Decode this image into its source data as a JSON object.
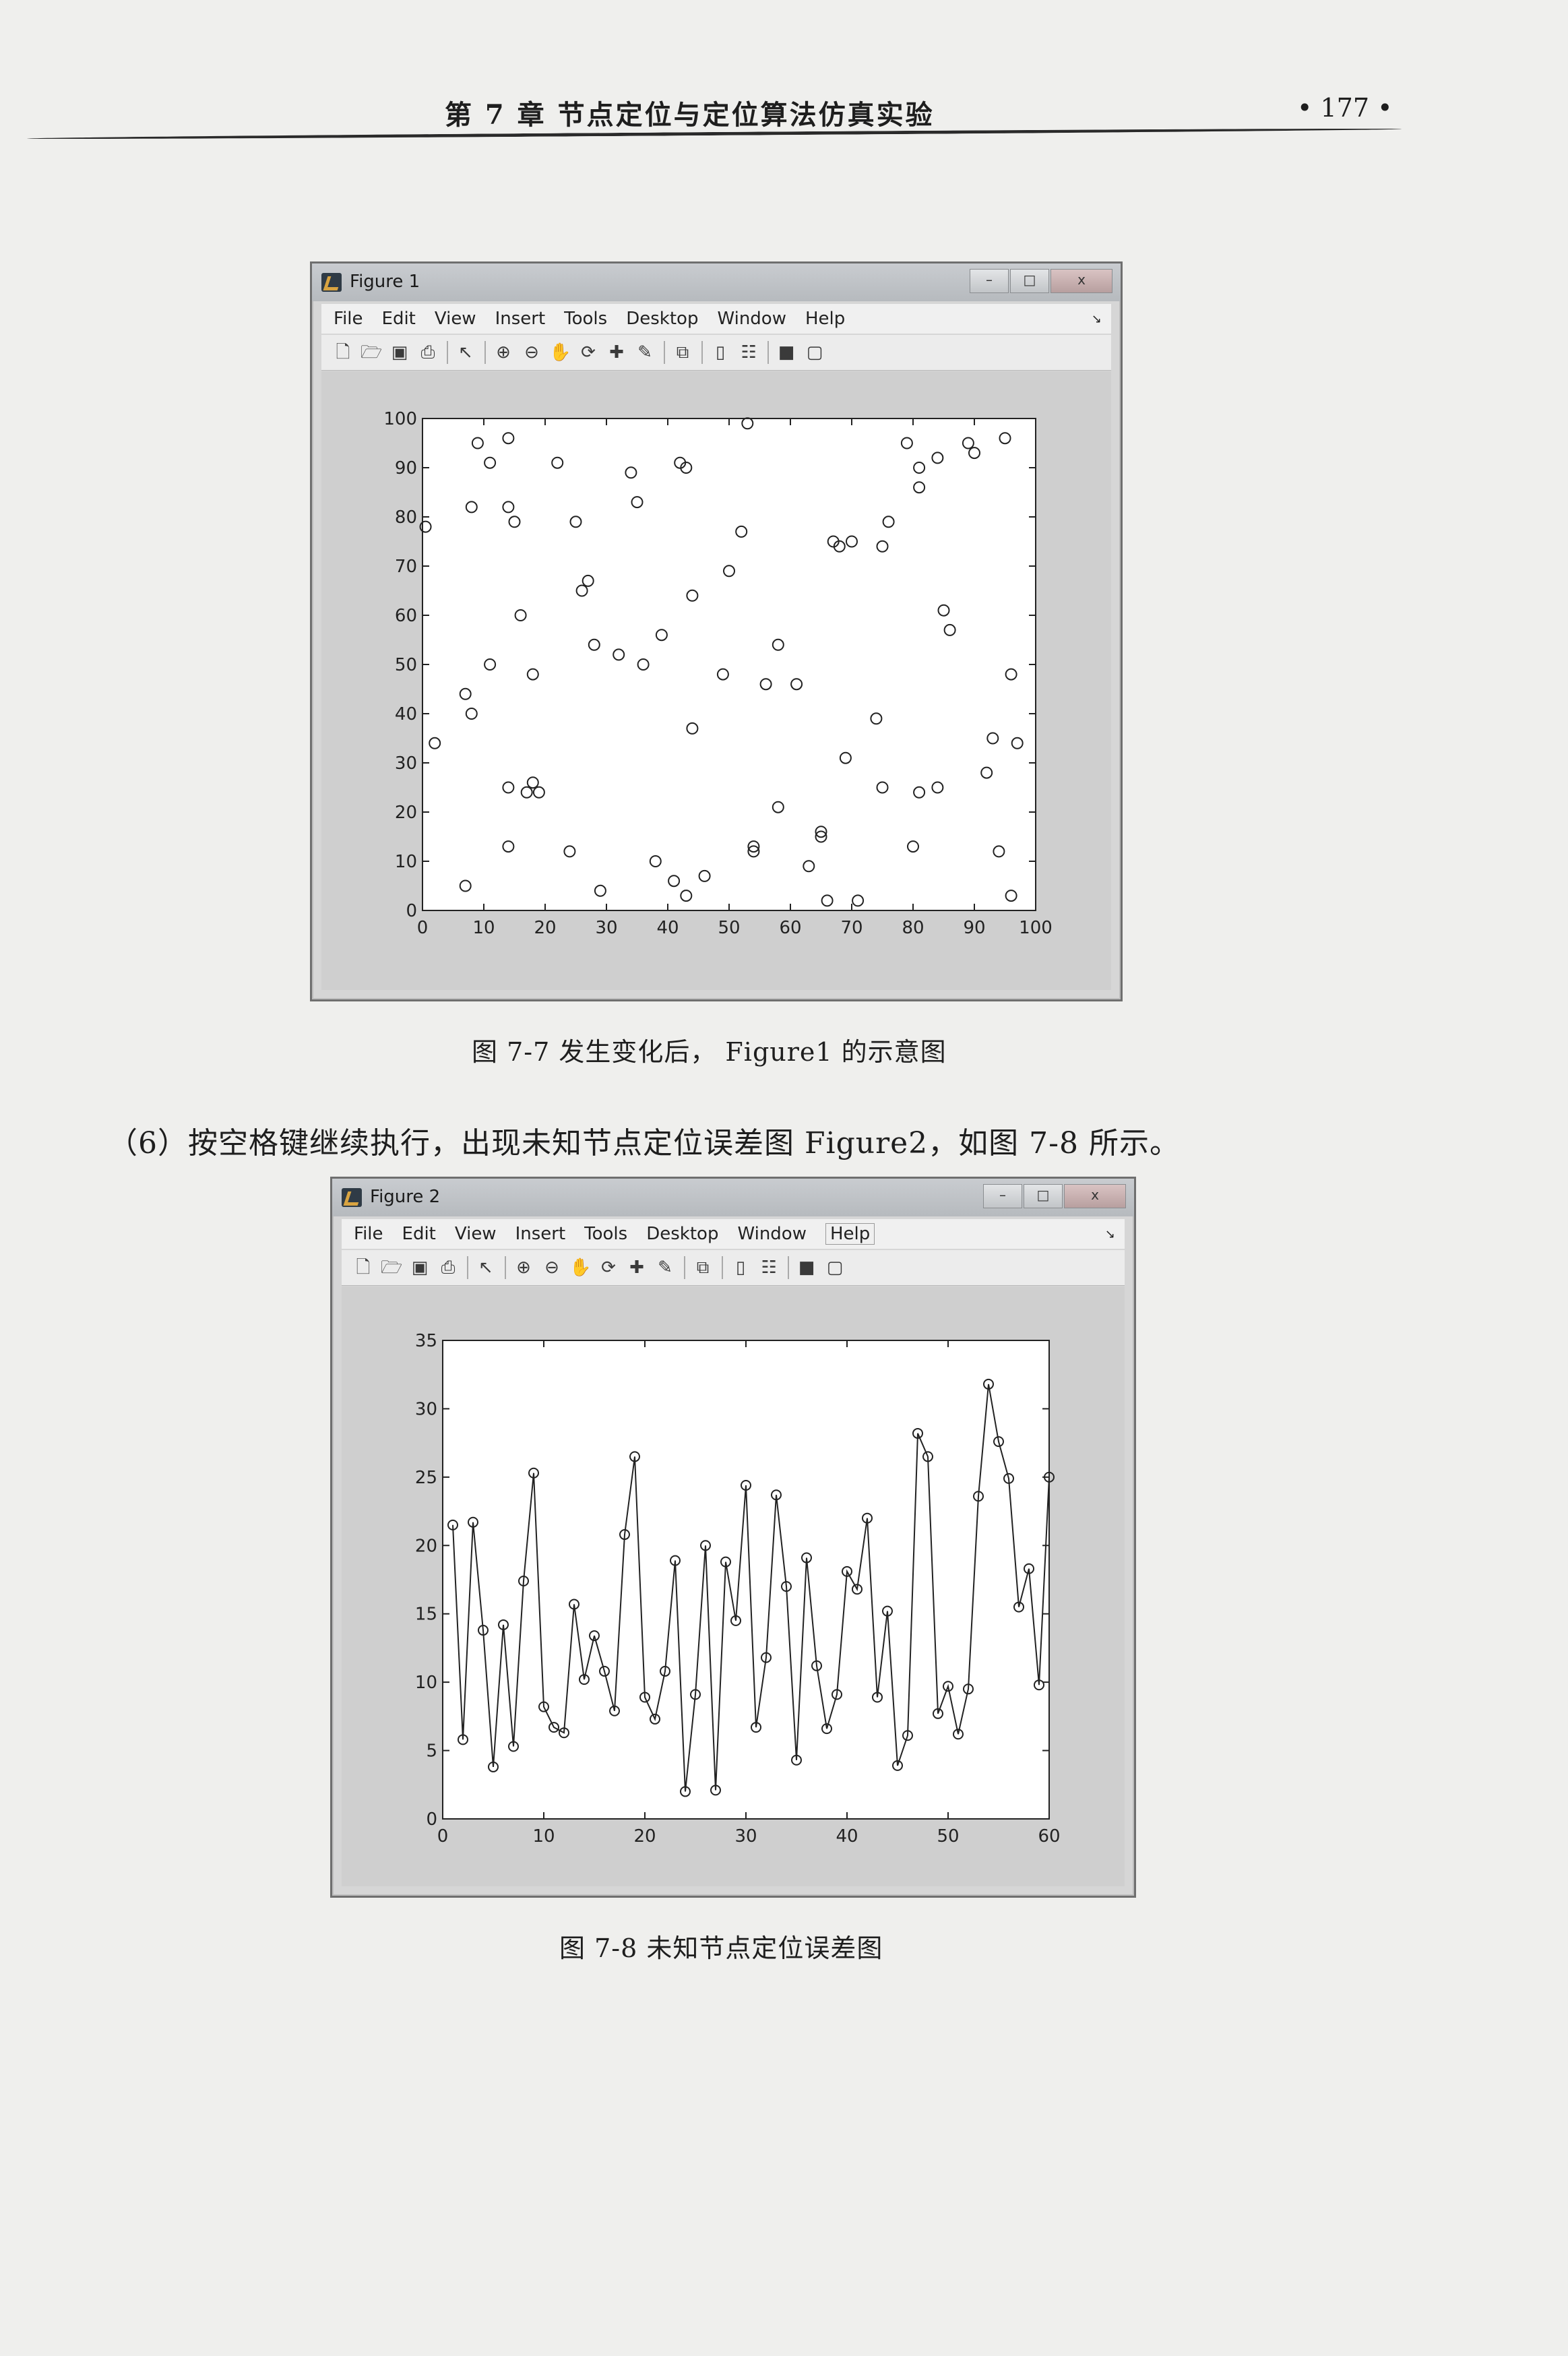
{
  "header": {
    "chapter_title": "第 7 章    节点定位与定位算法仿真实验",
    "page_number": "• 177 •"
  },
  "window_controls": {
    "minimize": "–",
    "maximize": "□",
    "close": "x"
  },
  "menu_dock_symbol": "↘",
  "toolbar_icons": [
    "new-icon",
    "open-icon",
    "save-icon",
    "print-icon",
    "|",
    "pointer-icon",
    "|",
    "zoom-in-icon",
    "zoom-out-icon",
    "pan-icon",
    "rotate-icon",
    "data-cursor-icon",
    "brush-icon",
    "|",
    "link-icon",
    "|",
    "colorbar-icon",
    "legend-icon",
    "|",
    "hide-tools-icon",
    "show-tools-icon"
  ],
  "toolbar_glyphs": {
    "new-icon": "🗋",
    "open-icon": "🗁",
    "save-icon": "▣",
    "print-icon": "⎙",
    "pointer-icon": "↖",
    "zoom-in-icon": "⊕",
    "zoom-out-icon": "⊖",
    "pan-icon": "✋",
    "rotate-icon": "⟳",
    "data-cursor-icon": "✚",
    "brush-icon": "✎",
    "link-icon": "⧉",
    "colorbar-icon": "▯",
    "legend-icon": "☷",
    "hide-tools-icon": "■",
    "show-tools-icon": "▢"
  },
  "figure1": {
    "window_title": "Figure 1",
    "menu": [
      "File",
      "Edit",
      "View",
      "Insert",
      "Tools",
      "Desktop",
      "Window",
      "Help"
    ],
    "caption": "图 7-7    发生变化后，  Figure1 的示意图"
  },
  "paragraph": "（6）按空格键继续执行，出现未知节点定位误差图 Figure2，如图 7-8 所示。",
  "figure2": {
    "window_title": "Figure 2",
    "menu": [
      "File",
      "Edit",
      "View",
      "Insert",
      "Tools",
      "Desktop",
      "Window",
      "Help"
    ],
    "caption": "图 7-8    未知节点定位误差图"
  },
  "chart_data": [
    {
      "type": "scatter",
      "title": "",
      "xlabel": "",
      "ylabel": "",
      "xlim": [
        0,
        100
      ],
      "ylim": [
        0,
        100
      ],
      "xticks": [
        0,
        10,
        20,
        30,
        40,
        50,
        60,
        70,
        80,
        90,
        100
      ],
      "yticks": [
        0,
        10,
        20,
        30,
        40,
        50,
        60,
        70,
        80,
        90,
        100
      ],
      "grid": false,
      "marker": "circle-open",
      "points": [
        [
          0.5,
          78
        ],
        [
          2,
          34
        ],
        [
          7,
          5
        ],
        [
          7,
          44
        ],
        [
          8,
          40
        ],
        [
          8,
          82
        ],
        [
          9,
          95
        ],
        [
          11,
          50
        ],
        [
          11,
          91
        ],
        [
          14,
          82
        ],
        [
          14,
          96
        ],
        [
          14,
          25
        ],
        [
          14,
          13
        ],
        [
          15,
          79
        ],
        [
          16,
          60
        ],
        [
          17,
          24
        ],
        [
          18,
          26
        ],
        [
          18,
          48
        ],
        [
          19,
          24
        ],
        [
          22,
          91
        ],
        [
          24,
          12
        ],
        [
          25,
          79
        ],
        [
          26,
          65
        ],
        [
          27,
          67
        ],
        [
          28,
          54
        ],
        [
          29,
          4
        ],
        [
          32,
          52
        ],
        [
          34,
          89
        ],
        [
          35,
          83
        ],
        [
          36,
          50
        ],
        [
          38,
          10
        ],
        [
          39,
          56
        ],
        [
          41,
          6
        ],
        [
          42,
          91
        ],
        [
          43,
          90
        ],
        [
          43,
          3
        ],
        [
          44,
          37
        ],
        [
          44,
          64
        ],
        [
          46,
          7
        ],
        [
          49,
          48
        ],
        [
          50,
          69
        ],
        [
          52,
          77
        ],
        [
          53,
          99
        ],
        [
          54,
          13
        ],
        [
          54,
          12
        ],
        [
          56,
          46
        ],
        [
          58,
          54
        ],
        [
          58,
          21
        ],
        [
          61,
          46
        ],
        [
          63,
          9
        ],
        [
          65,
          15
        ],
        [
          65,
          16
        ],
        [
          66,
          2
        ],
        [
          67,
          75
        ],
        [
          68,
          74
        ],
        [
          69,
          31
        ],
        [
          70,
          75
        ],
        [
          71,
          2
        ],
        [
          74,
          39
        ],
        [
          75,
          74
        ],
        [
          75,
          25
        ],
        [
          76,
          79
        ],
        [
          79,
          95
        ],
        [
          80,
          13
        ],
        [
          81,
          90
        ],
        [
          81,
          86
        ],
        [
          81,
          24
        ],
        [
          84,
          25
        ],
        [
          84,
          92
        ],
        [
          85,
          61
        ],
        [
          86,
          57
        ],
        [
          89,
          95
        ],
        [
          90,
          93
        ],
        [
          92,
          28
        ],
        [
          93,
          35
        ],
        [
          94,
          12
        ],
        [
          95,
          96
        ],
        [
          96,
          3
        ],
        [
          96,
          48
        ],
        [
          97,
          34
        ]
      ]
    },
    {
      "type": "line",
      "title": "",
      "xlabel": "",
      "ylabel": "",
      "xlim": [
        0,
        60
      ],
      "ylim": [
        0,
        35
      ],
      "xticks": [
        0,
        10,
        20,
        30,
        40,
        50,
        60
      ],
      "yticks": [
        0,
        5,
        10,
        15,
        20,
        25,
        30,
        35
      ],
      "grid": false,
      "marker": "circle-open",
      "series": [
        {
          "values": [
            21.5,
            5.8,
            21.7,
            13.8,
            3.8,
            14.2,
            5.3,
            17.4,
            25.3,
            8.2,
            6.7,
            6.3,
            15.7,
            10.2,
            13.4,
            10.8,
            7.9,
            20.8,
            26.5,
            8.9,
            7.3,
            10.8,
            18.9,
            2.0,
            9.1,
            20.0,
            2.1,
            18.8,
            14.5,
            24.4,
            6.7,
            11.8,
            23.7,
            17.0,
            4.3,
            19.1,
            11.2,
            6.6,
            9.1,
            18.1,
            16.8,
            22.0,
            8.9,
            15.2,
            3.9,
            6.1,
            28.2,
            26.5,
            7.7,
            9.7,
            6.2,
            9.5,
            23.6,
            31.8,
            27.6,
            24.9,
            15.5,
            18.3,
            9.8,
            25.0
          ]
        }
      ]
    }
  ]
}
